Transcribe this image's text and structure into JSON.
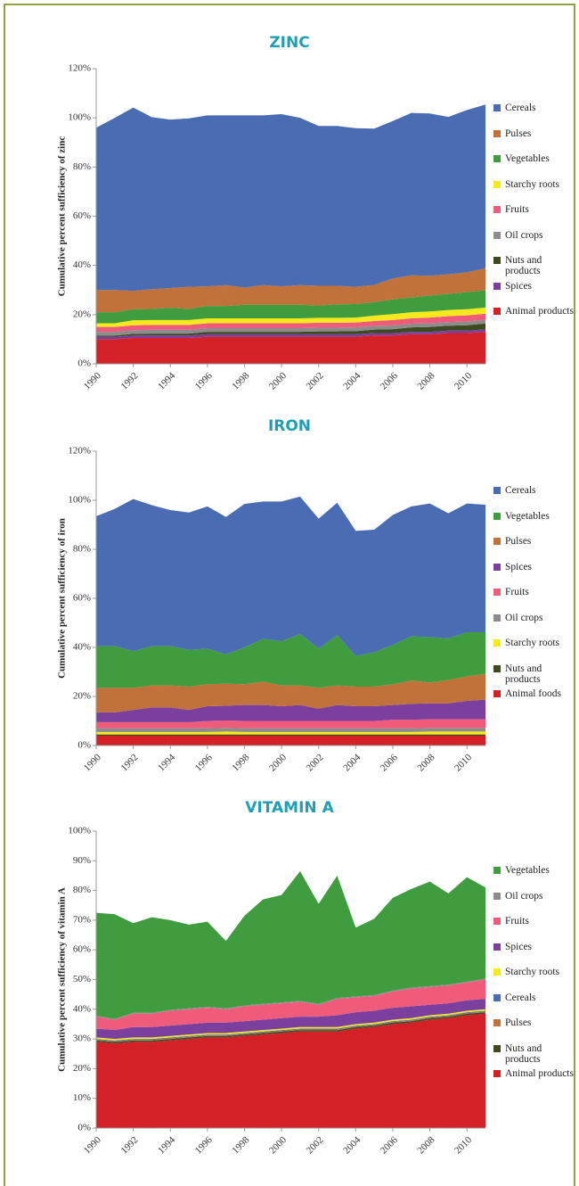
{
  "chart_data": [
    {
      "type": "area",
      "title": "ZINC",
      "ylabel": "Cumulative percent sufficiency of zinc",
      "x": [
        1990,
        1991,
        1992,
        1993,
        1994,
        1995,
        1996,
        1997,
        1998,
        1999,
        2000,
        2001,
        2002,
        2003,
        2004,
        2005,
        2006,
        2007,
        2008,
        2009,
        2010,
        2011
      ],
      "xlim": [
        1990,
        2011
      ],
      "xticks": [
        1990,
        1992,
        1994,
        1996,
        1998,
        2000,
        2002,
        2004,
        2006,
        2008,
        2010
      ],
      "ylim": [
        0,
        120
      ],
      "yticks": [
        {
          "value": 0,
          "label": "0%"
        },
        {
          "value": 20,
          "label": "20%"
        },
        {
          "value": 40,
          "label": "40%"
        },
        {
          "value": 60,
          "label": "60%"
        },
        {
          "value": 80,
          "label": "80%"
        },
        {
          "value": 100,
          "label": "100%"
        },
        {
          "value": 120,
          "label": "120%"
        }
      ],
      "series": [
        {
          "name": "Animal products",
          "color": "#d42027",
          "values": [
            10,
            10,
            10.5,
            10.5,
            10.5,
            10.5,
            11,
            11,
            11,
            11,
            11,
            11,
            11,
            11,
            11,
            11.5,
            11.5,
            12,
            12,
            12.5,
            12.5,
            13
          ]
        },
        {
          "name": "Spices",
          "color": "#7b3f9e",
          "values": [
            1,
            1,
            1,
            1,
            1,
            1,
            1,
            1,
            1,
            1,
            1,
            1,
            1,
            1,
            1,
            1,
            1,
            1,
            1,
            1,
            1,
            1
          ]
        },
        {
          "name": "Nuts and products",
          "color": "#3d4a1f",
          "values": [
            0.5,
            0.5,
            0.7,
            0.8,
            0.8,
            0.8,
            1,
            1,
            1,
            1,
            1,
            1,
            1.2,
            1.2,
            1.3,
            1.4,
            1.6,
            1.8,
            2,
            2,
            2.2,
            2.4
          ]
        },
        {
          "name": "Oil crops",
          "color": "#8c8c8c",
          "values": [
            1.5,
            1.5,
            1.5,
            1.5,
            1.5,
            1.5,
            1.5,
            1.5,
            1.5,
            1.5,
            1.5,
            1.5,
            1.5,
            1.5,
            1.5,
            1.5,
            1.5,
            1.5,
            1.5,
            1.5,
            1.5,
            1.5
          ]
        },
        {
          "name": "Fruits",
          "color": "#ef5b7b",
          "values": [
            2,
            2,
            2,
            2,
            2,
            2,
            2,
            2,
            2,
            2,
            2,
            2,
            2,
            2,
            2,
            2,
            2.2,
            2.2,
            2.3,
            2.4,
            2.5,
            2.5
          ]
        },
        {
          "name": "Starchy roots",
          "color": "#f5e81c",
          "values": [
            1.5,
            1.5,
            2,
            2,
            2,
            2,
            2,
            2,
            2,
            2,
            2,
            2,
            2,
            2,
            2,
            2.2,
            2.4,
            2.5,
            2.5,
            2.5,
            2.5,
            2.5
          ]
        },
        {
          "name": "Vegetables",
          "color": "#3f9c3f",
          "values": [
            4.5,
            4.5,
            4.5,
            4.5,
            5,
            4.5,
            5,
            5,
            5.5,
            5.5,
            5.5,
            5.5,
            5,
            5.5,
            5.5,
            5.5,
            6,
            6,
            6.5,
            6.5,
            7,
            7
          ]
        },
        {
          "name": "Pulses",
          "color": "#c0723a",
          "values": [
            9,
            9,
            7.5,
            8,
            8,
            9,
            8,
            8.5,
            7,
            8,
            7.5,
            8,
            8,
            7.5,
            7,
            7,
            8.5,
            9,
            8,
            8,
            8,
            9
          ]
        },
        {
          "name": "Cereals",
          "color": "#4a6cb3",
          "values": [
            66,
            70,
            74.5,
            70,
            68.5,
            68.5,
            69.5,
            69,
            70,
            69,
            70,
            68,
            65,
            65,
            64.5,
            63.5,
            64,
            66,
            66,
            64,
            66,
            66.5
          ]
        }
      ]
    },
    {
      "type": "area",
      "title": "IRON",
      "ylabel": "Cumulative percent sufficiency of iron",
      "x": [
        1990,
        1991,
        1992,
        1993,
        1994,
        1995,
        1996,
        1997,
        1998,
        1999,
        2000,
        2001,
        2002,
        2003,
        2004,
        2005,
        2006,
        2007,
        2008,
        2009,
        2010,
        2011
      ],
      "xlim": [
        1990,
        2011
      ],
      "xticks": [
        1990,
        1992,
        1994,
        1996,
        1998,
        2000,
        2002,
        2004,
        2006,
        2008,
        2010
      ],
      "ylim": [
        0,
        120
      ],
      "yticks": [
        {
          "value": 0,
          "label": "0%"
        },
        {
          "value": 20,
          "label": "20%"
        },
        {
          "value": 40,
          "label": "40%"
        },
        {
          "value": 60,
          "label": "60%"
        },
        {
          "value": 80,
          "label": "80%"
        },
        {
          "value": 100,
          "label": "100%"
        },
        {
          "value": 120,
          "label": "120%"
        }
      ],
      "series": [
        {
          "name": "Animal foods",
          "color": "#d42027",
          "values": [
            4,
            4,
            4,
            4,
            4,
            4,
            4,
            4,
            4,
            4,
            4,
            4,
            4,
            4,
            4,
            4,
            4,
            4,
            4,
            4,
            4,
            4
          ]
        },
        {
          "name": "Nuts and products",
          "color": "#3d4a1f",
          "values": [
            0.5,
            0.5,
            0.5,
            0.5,
            0.5,
            0.5,
            0.5,
            0.5,
            0.5,
            0.5,
            0.5,
            0.5,
            0.5,
            0.5,
            0.5,
            0.5,
            0.5,
            0.5,
            0.5,
            0.5,
            0.5,
            0.5
          ]
        },
        {
          "name": "Starchy roots",
          "color": "#f5e81c",
          "values": [
            1,
            1,
            1,
            1,
            1,
            1,
            1,
            1.2,
            1,
            1,
            1,
            1,
            1,
            1,
            1,
            1,
            1,
            1,
            1.2,
            1.2,
            1.2,
            1.2
          ]
        },
        {
          "name": "Oil crops",
          "color": "#8c8c8c",
          "values": [
            1.5,
            1.5,
            1.5,
            1.5,
            1.5,
            1.5,
            1.5,
            1.5,
            1.5,
            1.5,
            1.5,
            1.5,
            1.5,
            1.5,
            1.5,
            1.5,
            1.5,
            1.5,
            1.5,
            1.5,
            1.5,
            1.5
          ]
        },
        {
          "name": "Fruits",
          "color": "#ef5b7b",
          "values": [
            2.5,
            2.5,
            2.5,
            2.5,
            2.5,
            2.5,
            3,
            3,
            3,
            3,
            3,
            3,
            3,
            3,
            3,
            3,
            3.5,
            3.5,
            3.5,
            3.5,
            3.5,
            3.5
          ]
        },
        {
          "name": "Spices",
          "color": "#7b3f9e",
          "values": [
            4,
            4,
            5,
            6,
            6,
            5,
            6,
            6,
            6.5,
            6.5,
            6,
            6.5,
            5,
            6.5,
            6,
            6,
            6,
            6.5,
            6.5,
            6.5,
            7.5,
            8
          ]
        },
        {
          "name": "Pulses",
          "color": "#c0723a",
          "values": [
            10,
            10,
            9,
            9,
            9,
            9.5,
            9,
            9,
            8.5,
            9.5,
            8.5,
            8,
            8.5,
            8,
            8,
            8,
            8.5,
            9.5,
            8.5,
            9.5,
            10,
            10.5
          ]
        },
        {
          "name": "Vegetables",
          "color": "#3f9c3f",
          "values": [
            17,
            17,
            15,
            16,
            16,
            15,
            14.5,
            12,
            15,
            17.5,
            18,
            21,
            16,
            20.5,
            12.5,
            14,
            16,
            18,
            18.5,
            17,
            18,
            17
          ]
        },
        {
          "name": "Cereals",
          "color": "#4a6cb3",
          "values": [
            53,
            56,
            62,
            57.5,
            55.5,
            56,
            58,
            56,
            58.5,
            56,
            57,
            56,
            53,
            54,
            51,
            50,
            53,
            53,
            54.5,
            51,
            52.5,
            52
          ]
        }
      ]
    },
    {
      "type": "area",
      "title": "VITAMIN A",
      "ylabel": "Cumulative percent sufficiency of vitamin A",
      "x": [
        1990,
        1991,
        1992,
        1993,
        1994,
        1995,
        1996,
        1997,
        1998,
        1999,
        2000,
        2001,
        2002,
        2003,
        2004,
        2005,
        2006,
        2007,
        2008,
        2009,
        2010,
        2011
      ],
      "xlim": [
        1990,
        2011
      ],
      "xticks": [
        1990,
        1992,
        1994,
        1996,
        1998,
        2000,
        2002,
        2004,
        2006,
        2008,
        2010
      ],
      "ylim": [
        0,
        100
      ],
      "yticks": [
        {
          "value": 0,
          "label": "0%"
        },
        {
          "value": 10,
          "label": "10%"
        },
        {
          "value": 20,
          "label": "20%"
        },
        {
          "value": 30,
          "label": "30%"
        },
        {
          "value": 40,
          "label": "40%"
        },
        {
          "value": 50,
          "label": "50%"
        },
        {
          "value": 60,
          "label": "60%"
        },
        {
          "value": 70,
          "label": "70%"
        },
        {
          "value": 80,
          "label": "80%"
        },
        {
          "value": 90,
          "label": "90%"
        },
        {
          "value": 100,
          "label": "100%"
        }
      ],
      "series": [
        {
          "name": "Animal products",
          "color": "#d42027",
          "values": [
            29,
            28.5,
            29,
            29,
            29.5,
            30,
            30.5,
            30.5,
            31,
            31.5,
            32,
            32.5,
            32.5,
            32.5,
            33.5,
            34,
            35,
            35.5,
            36.5,
            37,
            38,
            38.5
          ]
        },
        {
          "name": "Nuts and products",
          "color": "#3d4a1f",
          "values": [
            0.5,
            0.5,
            0.5,
            0.5,
            0.5,
            0.5,
            0.5,
            0.5,
            0.5,
            0.5,
            0.5,
            0.5,
            0.5,
            0.5,
            0.5,
            0.5,
            0.5,
            0.5,
            0.5,
            0.5,
            0.5,
            0.5
          ]
        },
        {
          "name": "Pulses",
          "color": "#c0723a",
          "values": [
            0.2,
            0.2,
            0.2,
            0.2,
            0.2,
            0.2,
            0.2,
            0.2,
            0.2,
            0.2,
            0.2,
            0.2,
            0.2,
            0.2,
            0.2,
            0.2,
            0.2,
            0.2,
            0.2,
            0.2,
            0.2,
            0.2
          ]
        },
        {
          "name": "Cereals",
          "color": "#4a6cb3",
          "values": [
            0.3,
            0.3,
            0.3,
            0.3,
            0.3,
            0.3,
            0.3,
            0.3,
            0.3,
            0.3,
            0.3,
            0.3,
            0.3,
            0.3,
            0.3,
            0.3,
            0.3,
            0.3,
            0.3,
            0.3,
            0.3,
            0.3
          ]
        },
        {
          "name": "Starchy roots",
          "color": "#f5e81c",
          "values": [
            0.5,
            0.5,
            0.5,
            0.5,
            0.5,
            0.5,
            0.5,
            0.5,
            0.5,
            0.5,
            0.5,
            0.5,
            0.5,
            0.5,
            0.5,
            0.5,
            0.5,
            0.5,
            0.5,
            0.5,
            0.5,
            0.5
          ]
        },
        {
          "name": "Spices",
          "color": "#7b3f9e",
          "values": [
            3,
            3,
            3.5,
            3.5,
            3.5,
            3.5,
            3.5,
            3.5,
            3.5,
            3.5,
            3.5,
            3.5,
            3.5,
            4,
            4,
            4,
            4,
            4,
            3.5,
            3.5,
            3.5,
            3.5
          ]
        },
        {
          "name": "Fruits",
          "color": "#ef5b7b",
          "values": [
            4,
            3.5,
            4.5,
            4.5,
            5,
            5,
            5,
            4.5,
            5,
            5,
            5,
            5,
            4,
            5.5,
            5,
            5,
            5.5,
            6,
            6,
            6,
            6,
            6.5
          ]
        },
        {
          "name": "Oil crops",
          "color": "#8c8c8c",
          "values": [
            0.3,
            0.3,
            0.3,
            0.3,
            0.3,
            0.3,
            0.3,
            0.3,
            0.3,
            0.3,
            0.3,
            0.3,
            0.3,
            0.3,
            0.3,
            0.3,
            0.3,
            0.3,
            0.3,
            0.3,
            0.3,
            0.3
          ]
        },
        {
          "name": "Vegetables",
          "color": "#3f9c3f",
          "values": [
            34.7,
            35.2,
            30.2,
            32.2,
            30.2,
            28.2,
            28.7,
            22.7,
            30.2,
            35.2,
            36.2,
            43.7,
            33.7,
            41.2,
            23.2,
            25.7,
            31.2,
            33.2,
            35.2,
            30.7,
            35.2,
            30.7
          ]
        }
      ]
    }
  ]
}
